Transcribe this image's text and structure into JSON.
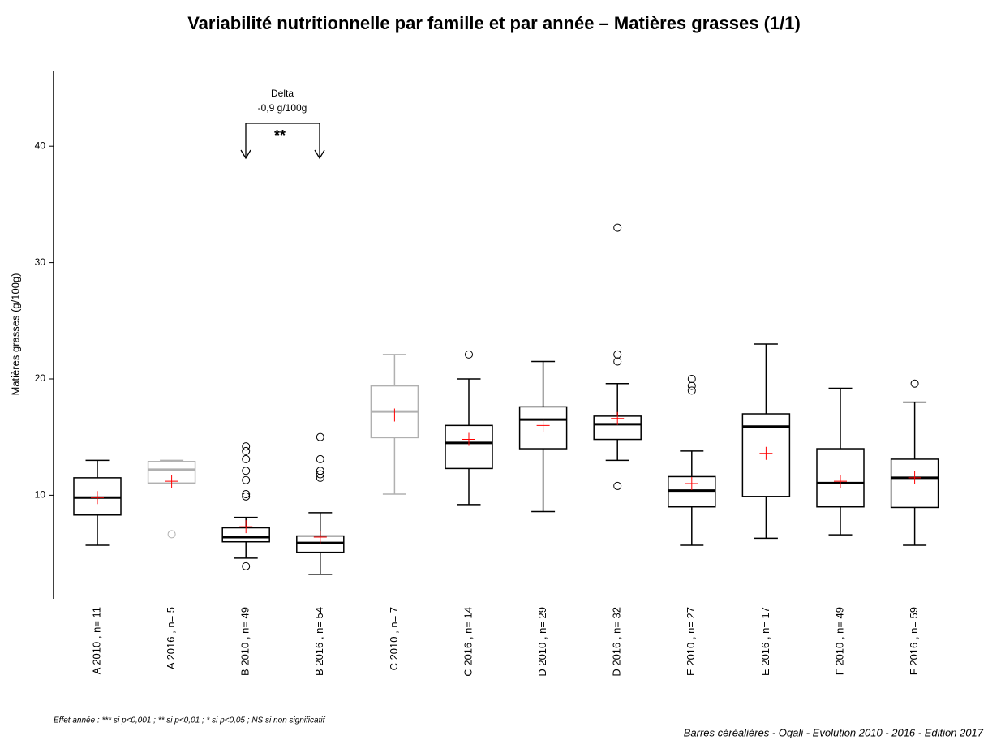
{
  "chart_data": {
    "type": "box",
    "title": "Variabilité nutritionnelle par famille et par année – Matières grasses (1/1)",
    "y_label": "Matières grasses (g/100g)",
    "categories": [
      "A 2010 , n= 11",
      "A 2016 , n= 5",
      "B 2010 , n= 49",
      "B 2016 , n= 54",
      "C 2010 , n= 7",
      "C 2016 , n= 14",
      "D 2010 , n= 29",
      "D 2016 , n= 32",
      "E 2010 , n= 27",
      "E 2016 , n= 17",
      "F 2010 , n= 49",
      "F 2016 , n= 59"
    ],
    "boxes": [
      {
        "whisker_low": 5.7,
        "q1": 8.3,
        "median": 9.8,
        "q3": 11.5,
        "whisker_high": 13.0,
        "mean": 9.8,
        "outliers": [],
        "color": "#000000"
      },
      {
        "whisker_low": 11.05,
        "q1": 11.05,
        "median": 12.2,
        "q3": 12.9,
        "whisker_high": 13.0,
        "mean": 11.2,
        "outliers": [
          6.65
        ],
        "color": "#b0b0b0"
      },
      {
        "whisker_low": 4.6,
        "q1": 6.0,
        "median": 6.4,
        "q3": 7.2,
        "whisker_high": 8.1,
        "mean": 7.3,
        "outliers": [
          3.9,
          9.9,
          10.1,
          11.3,
          12.1,
          13.1,
          13.8,
          14.2
        ],
        "color": "#000000"
      },
      {
        "whisker_low": 3.2,
        "q1": 5.1,
        "median": 5.9,
        "q3": 6.5,
        "whisker_high": 8.5,
        "mean": 6.4,
        "outliers": [
          11.5,
          11.8,
          12.1,
          13.1,
          15.0
        ],
        "color": "#000000"
      },
      {
        "whisker_low": 10.1,
        "q1": 14.95,
        "median": 17.2,
        "q3": 19.4,
        "whisker_high": 22.1,
        "mean": 16.9,
        "outliers": [],
        "color": "#b0b0b0"
      },
      {
        "whisker_low": 9.2,
        "q1": 12.3,
        "median": 14.5,
        "q3": 16.0,
        "whisker_high": 20.0,
        "mean": 14.8,
        "outliers": [
          22.1
        ],
        "color": "#000000"
      },
      {
        "whisker_low": 8.6,
        "q1": 14.0,
        "median": 16.5,
        "q3": 17.6,
        "whisker_high": 21.5,
        "mean": 16.0,
        "outliers": [],
        "color": "#000000"
      },
      {
        "whisker_low": 13.0,
        "q1": 14.8,
        "median": 16.1,
        "q3": 16.8,
        "whisker_high": 19.6,
        "mean": 16.6,
        "outliers": [
          10.8,
          21.5,
          22.1,
          33.0
        ],
        "color": "#000000"
      },
      {
        "whisker_low": 5.7,
        "q1": 9.0,
        "median": 10.4,
        "q3": 11.6,
        "whisker_high": 13.8,
        "mean": 11.0,
        "outliers": [
          19.0,
          19.4,
          20.0
        ],
        "color": "#000000"
      },
      {
        "whisker_low": 6.3,
        "q1": 9.9,
        "median": 15.9,
        "q3": 17.0,
        "whisker_high": 23.0,
        "mean": 13.6,
        "outliers": [],
        "color": "#000000"
      },
      {
        "whisker_low": 6.6,
        "q1": 9.0,
        "median": 11.05,
        "q3": 14.0,
        "whisker_high": 19.2,
        "mean": 11.2,
        "outliers": [],
        "color": "#000000"
      },
      {
        "whisker_low": 5.7,
        "q1": 8.95,
        "median": 11.5,
        "q3": 13.1,
        "whisker_high": 18.0,
        "mean": 11.5,
        "outliers": [
          19.6
        ],
        "color": "#000000"
      }
    ],
    "mean_color": "#ff0000",
    "ylim": [
      1.1,
      46.5
    ],
    "yticks": [
      10,
      20,
      30,
      40
    ],
    "annotation": {
      "title": "Delta",
      "text": "-0,9 g/100g",
      "significance": "**"
    },
    "footnote": "Effet année : *** si p<0,001 ; ** si p<0,01 ; * si p<0,05 ; NS si non significatif",
    "source": "Barres céréalières - Oqali - Evolution 2010 - 2016 - Edition 2017"
  }
}
